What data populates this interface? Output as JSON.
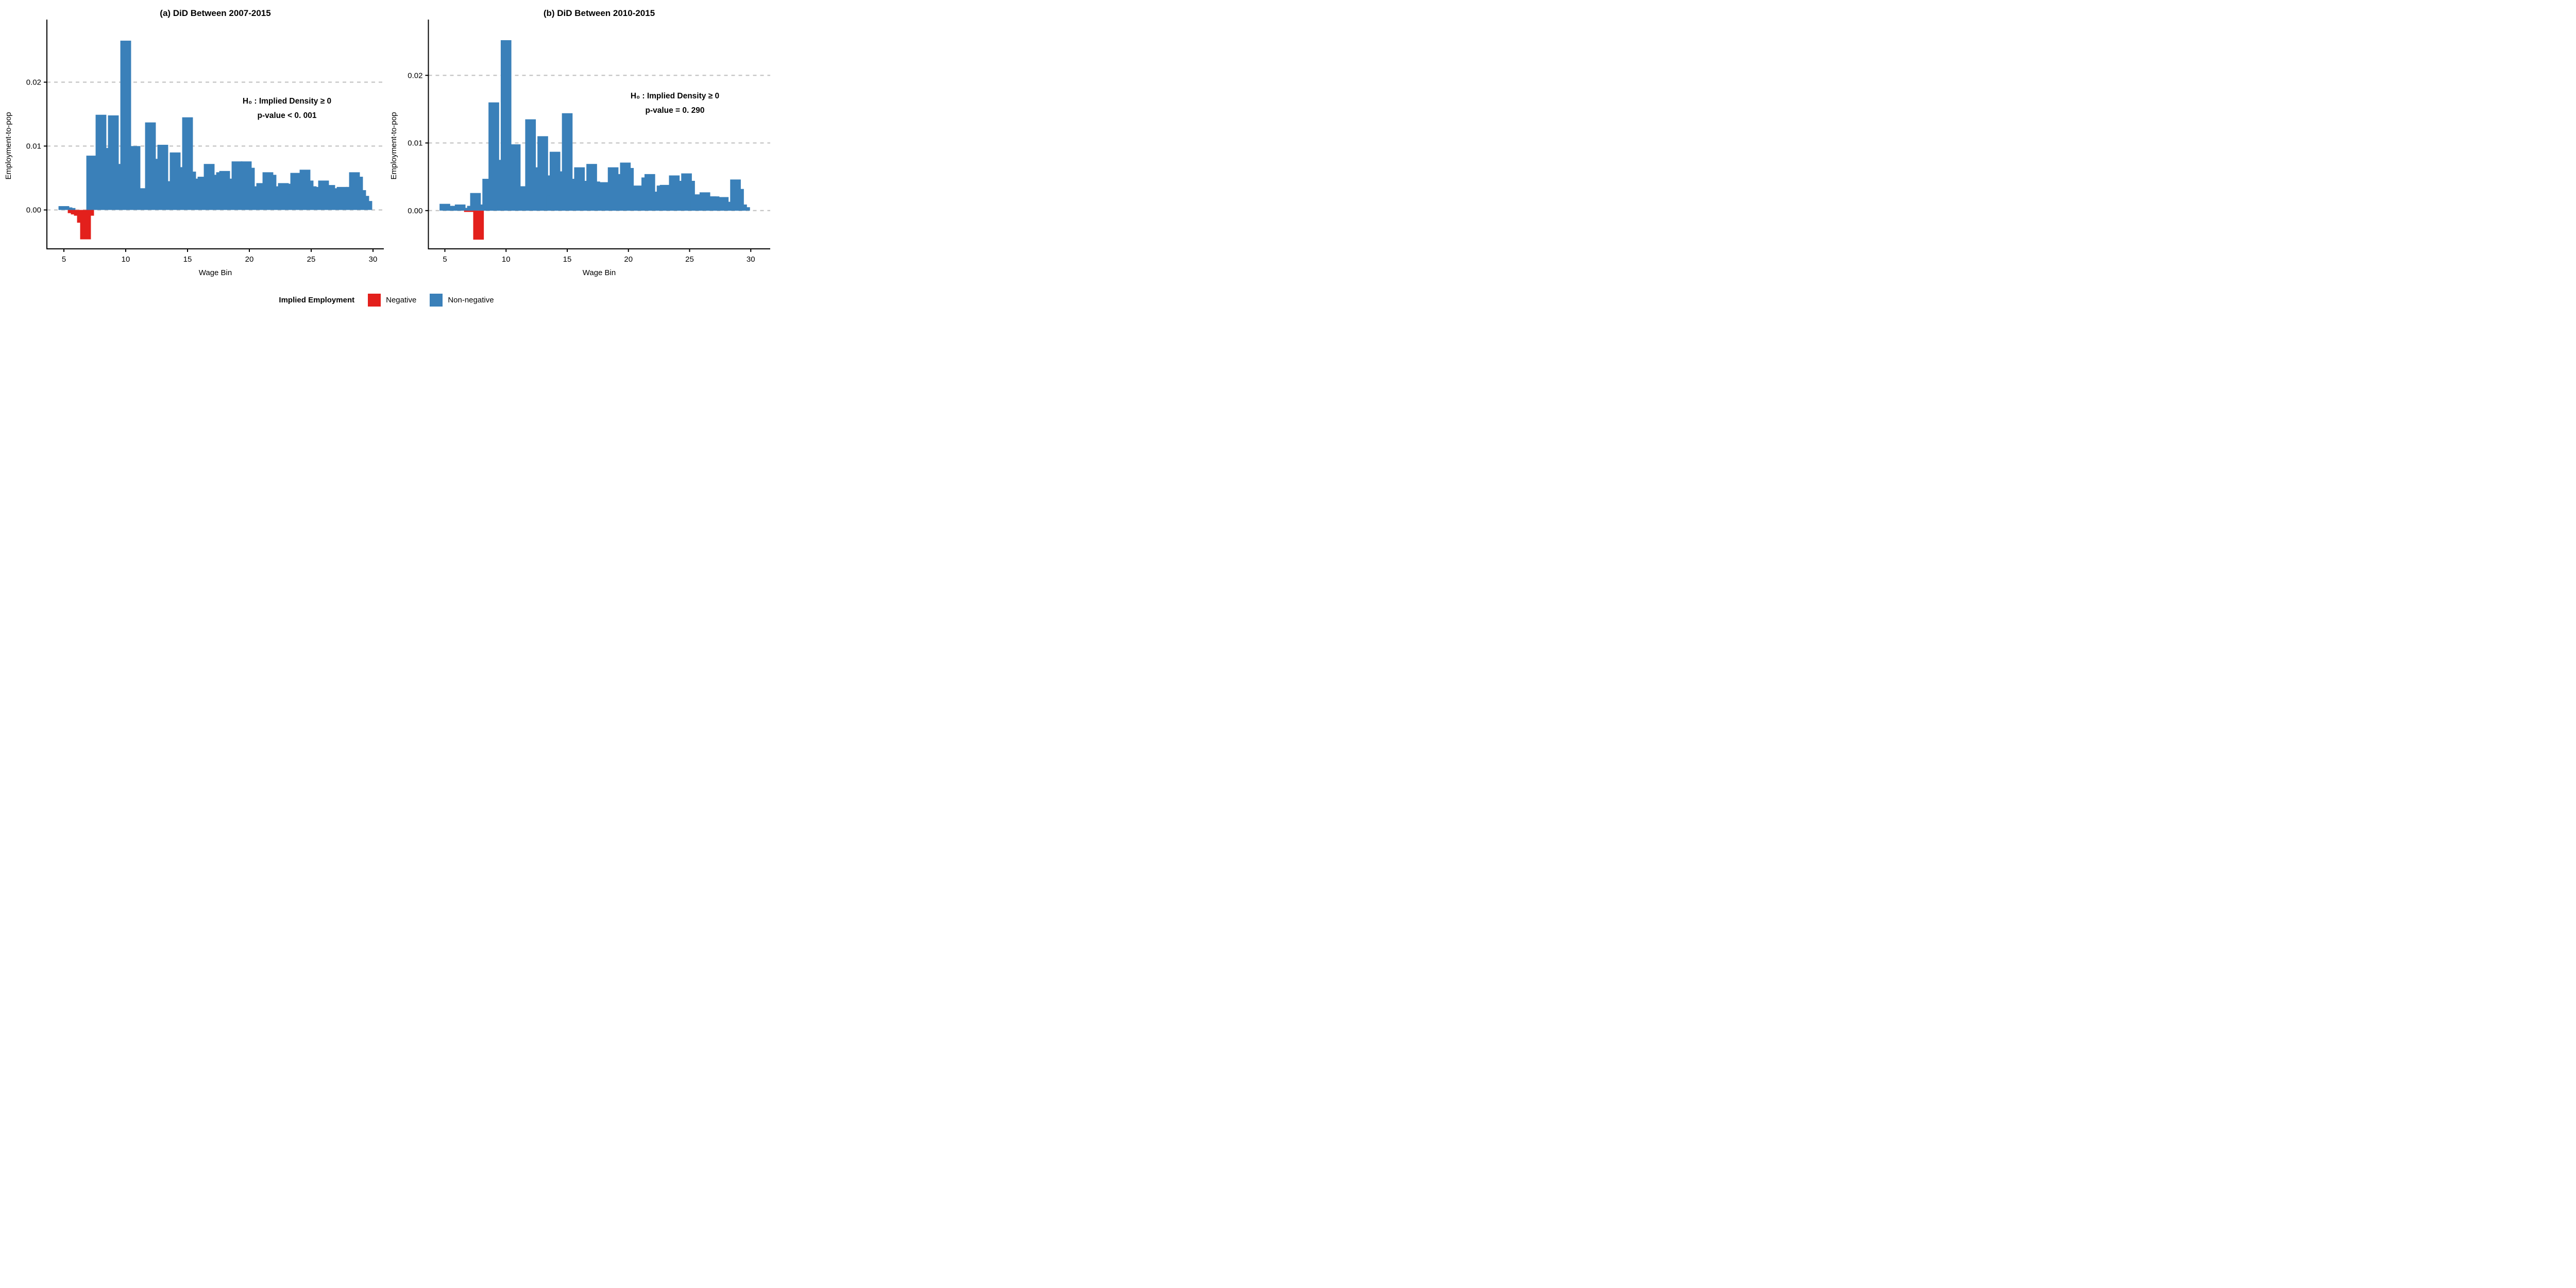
{
  "page": {
    "background": "#ffffff"
  },
  "colors": {
    "negative": "#E3201C",
    "non_negative": "#3A80B9",
    "grid": "#C4C4C4",
    "axis": "#000000"
  },
  "legend": {
    "title": "Implied Employment",
    "items": [
      {
        "label": "Negative",
        "color": "#E3201C"
      },
      {
        "label": "Non-negative",
        "color": "#3A80B9"
      }
    ]
  },
  "chart_data": [
    {
      "type": "bar",
      "title": "(a) DiD Between 2007-2015",
      "xlabel": "Wage Bin",
      "ylabel": "Employment-to-pop",
      "annotation": [
        "H₀ : Implied Density  ≥ 0",
        "p-value < 0. 001"
      ],
      "x_ticks": [
        5,
        10,
        15,
        20,
        25,
        30
      ],
      "y_ticks": [
        "0.00",
        "0.01",
        "0.02"
      ],
      "y_tick_values": [
        0,
        0.01,
        0.02
      ],
      "ylim": [
        -0.0062,
        0.0275
      ],
      "xlim": [
        4.3,
        30.9
      ],
      "grid": "horizontal dotted at 0.00, 0.01, 0.02",
      "legend_position": "bottom shared",
      "bin_width": 0.25,
      "color_rule": "red if value < 0 else blue",
      "x": [
        5.0,
        5.25,
        5.5,
        5.75,
        6.0,
        6.25,
        6.5,
        6.75,
        7.0,
        7.25,
        7.5,
        7.75,
        8.0,
        8.25,
        8.5,
        8.75,
        9.0,
        9.25,
        9.5,
        9.75,
        10.0,
        10.25,
        10.5,
        10.75,
        11.0,
        11.25,
        11.5,
        11.75,
        12.0,
        12.25,
        12.5,
        12.75,
        13.0,
        13.25,
        13.5,
        13.75,
        14.0,
        14.25,
        14.5,
        14.75,
        15.0,
        15.25,
        15.5,
        15.75,
        16.0,
        16.25,
        16.5,
        16.75,
        17.0,
        17.25,
        17.5,
        17.75,
        18.0,
        18.25,
        18.5,
        18.75,
        19.0,
        19.25,
        19.5,
        19.75,
        20.0,
        20.25,
        20.5,
        20.75,
        21.0,
        21.25,
        21.5,
        21.75,
        22.0,
        22.25,
        22.5,
        22.75,
        23.0,
        23.25,
        23.5,
        23.75,
        24.0,
        24.25,
        24.5,
        24.75,
        25.0,
        25.25,
        25.5,
        25.75,
        26.0,
        26.25,
        26.5,
        26.75,
        27.0,
        27.25,
        27.5,
        27.75,
        28.0,
        28.25,
        28.5,
        28.75,
        29.0,
        29.25,
        29.5
      ],
      "values": [
        0.0006,
        0.0004,
        0.0003,
        -0.0005,
        -0.0007,
        -0.0009,
        -0.002,
        -0.0046,
        -0.0009,
        0.0085,
        0.0061,
        0.0037,
        0.0149,
        0.0049,
        0.0097,
        0.0047,
        0.0148,
        0.002,
        0.0072,
        0.0027,
        0.0265,
        0.0049,
        0.0054,
        0.01,
        0.0022,
        0.0034,
        0.0008,
        0.0002,
        0.0137,
        0.0045,
        0.008,
        0.0035,
        0.0102,
        0.0028,
        0.0045,
        0.002,
        0.009,
        0.002,
        0.0067,
        0.0018,
        0.0145,
        0.006,
        0.0049,
        0.0042,
        0.0034,
        0.0052,
        0.0023,
        0.0072,
        0.0054,
        0.0055,
        0.0034,
        0.0059,
        0.0061,
        0.0036,
        0.0035,
        0.0049,
        0.0076,
        0.0058,
        0.0019,
        0.0076,
        0.0066,
        0.0034,
        0.0027,
        0.0037,
        0.0042,
        0.0034,
        0.0059,
        0.0055,
        0.0037,
        0.0032,
        0.0024,
        0.0042,
        0.0041,
        0.0037,
        0.0024,
        0.0058,
        0.0034,
        0.0021,
        0.0063,
        0.0046,
        0.0037,
        0.0027,
        0.0036,
        0.0029,
        0.0046,
        0.0032,
        0.0039,
        0.0026,
        0.0034,
        0.0027,
        0.0036,
        0.0029,
        0.0029,
        0.0036,
        0.0059,
        0.0052,
        0.0031,
        0.0022,
        0.0014
      ]
    },
    {
      "type": "bar",
      "title": "(b) DiD Between 2010-2015",
      "xlabel": "Wage Bin",
      "ylabel": "Employment-to-pop",
      "annotation": [
        "H₀ : Implied Density  ≥ 0",
        "p-value = 0. 290"
      ],
      "x_ticks": [
        5,
        10,
        15,
        20,
        25,
        30
      ],
      "y_ticks": [
        "0.00",
        "0.01",
        "0.02"
      ],
      "y_tick_values": [
        0,
        0.01,
        0.02
      ],
      "ylim": [
        -0.0056,
        0.0262
      ],
      "xlim": [
        4.3,
        30.9
      ],
      "grid": "horizontal dotted at 0.00, 0.01, 0.02",
      "legend_position": "bottom shared",
      "bin_width": 0.25,
      "color_rule": "red if value < 0 else blue",
      "x": [
        5.0,
        5.25,
        5.5,
        5.75,
        6.0,
        6.25,
        6.5,
        6.75,
        7.0,
        7.25,
        7.5,
        7.75,
        8.0,
        8.25,
        8.5,
        8.75,
        9.0,
        9.25,
        9.5,
        9.75,
        10.0,
        10.25,
        10.5,
        10.75,
        11.0,
        11.25,
        11.5,
        11.75,
        12.0,
        12.25,
        12.5,
        12.75,
        13.0,
        13.25,
        13.5,
        13.75,
        14.0,
        14.25,
        14.5,
        14.75,
        15.0,
        15.25,
        15.5,
        15.75,
        16.0,
        16.25,
        16.5,
        16.75,
        17.0,
        17.25,
        17.5,
        17.75,
        18.0,
        18.25,
        18.5,
        18.75,
        19.0,
        19.25,
        19.5,
        19.75,
        20.0,
        20.25,
        20.5,
        20.75,
        21.0,
        21.25,
        21.5,
        21.75,
        22.0,
        22.25,
        22.5,
        22.75,
        23.0,
        23.25,
        23.5,
        23.75,
        24.0,
        24.25,
        24.5,
        24.75,
        25.0,
        25.25,
        25.5,
        25.75,
        26.0,
        26.25,
        26.5,
        26.75,
        27.0,
        27.25,
        27.5,
        27.75,
        28.0,
        28.25,
        28.5,
        28.75,
        29.0,
        29.25,
        29.5
      ],
      "values": [
        0.001,
        0.0007,
        0.0003,
        0.0001,
        0.0007,
        0.0009,
        0.0001,
        0.0004,
        -0.0002,
        0.0007,
        0.0026,
        -0.0043,
        0.0002,
        0.0009,
        0.0047,
        0.0011,
        0.016,
        0.0015,
        0.0075,
        0.0008,
        0.0252,
        0.0026,
        0.0015,
        0.0098,
        0.0013,
        0.0024,
        0.0036,
        0.0021,
        0.0135,
        0.004,
        0.0064,
        0.0027,
        0.011,
        0.0027,
        0.0052,
        0.0022,
        0.0087,
        0.0023,
        0.0058,
        0.0006,
        0.0144,
        0.0047,
        0.0038,
        0.0005,
        0.0064,
        0.0044,
        0.0032,
        0.0035,
        0.0069,
        0.0043,
        0.004,
        0.0021,
        0.0042,
        0.0034,
        0.004,
        0.0064,
        0.0054,
        0.0044,
        0.0024,
        0.0071,
        0.0063,
        0.0024,
        0.0017,
        0.0037,
        0.0033,
        0.0028,
        0.0049,
        0.0054,
        0.0028,
        0.0022,
        0.0015,
        0.0037,
        0.0038,
        0.0021,
        0.0013,
        0.0052,
        0.0044,
        0.0025,
        0.0009,
        0.0055,
        0.0044,
        0.0019,
        0.0015,
        0.0024,
        0.0019,
        0.0027,
        0.0011,
        0.0021,
        0.0021,
        0.002,
        0.0006,
        0.002,
        0.0013,
        0.0008,
        0.0008,
        0.0046,
        0.0032,
        0.0009,
        0.0005
      ]
    }
  ]
}
